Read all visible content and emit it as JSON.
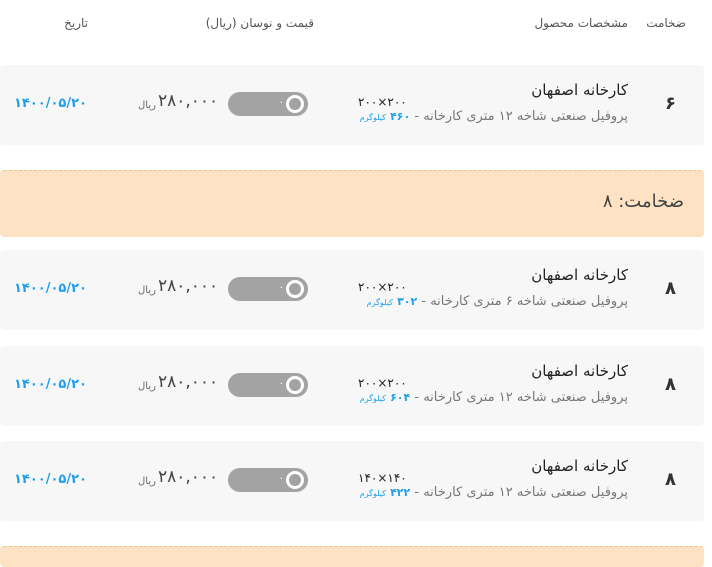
{
  "header": {
    "thickness": "ضخامت",
    "specs": "مشخصات محصول",
    "price": "قیمت و نوسان (ریال)",
    "date": "تاریخ"
  },
  "groups": [
    {
      "label": "ضخامت: ۸"
    }
  ],
  "rows": [
    {
      "thickness": "۶",
      "factory": "کارخانه اصفهان",
      "desc": "پروفیل صنعتی شاخه ۱۲ متری کارخانه - ",
      "weight": "۴۶۰",
      "weight_unit": "کیلوگرم",
      "size": "۲۰۰×۲۰۰",
      "change": "۰",
      "price": "۲۸۰,۰۰۰",
      "currency": "ریال",
      "date": "۱۴۰۰/۰۵/۲۰"
    },
    {
      "thickness": "۸",
      "factory": "کارخانه اصفهان",
      "desc": "پروفیل صنعتی شاخه ۶ متری کارخانه - ",
      "weight": "۳۰۲",
      "weight_unit": "کیلوگرم",
      "size": "۲۰۰×۲۰۰",
      "change": "۰",
      "price": "۲۸۰,۰۰۰",
      "currency": "ریال",
      "date": "۱۴۰۰/۰۵/۲۰"
    },
    {
      "thickness": "۸",
      "factory": "کارخانه اصفهان",
      "desc": "پروفیل صنعتی شاخه ۱۲ متری کارخانه - ",
      "weight": "۶۰۴",
      "weight_unit": "کیلوگرم",
      "size": "۲۰۰×۲۰۰",
      "change": "۰",
      "price": "۲۸۰,۰۰۰",
      "currency": "ریال",
      "date": "۱۴۰۰/۰۵/۲۰"
    },
    {
      "thickness": "۸",
      "factory": "کارخانه اصفهان",
      "desc": "پروفیل صنعتی شاخه ۱۲ متری کارخانه - ",
      "weight": "۴۲۲",
      "weight_unit": "کیلوگرم",
      "size": "۱۴۰×۱۴۰",
      "change": "۰",
      "price": "۲۸۰,۰۰۰",
      "currency": "ریال",
      "date": "۱۴۰۰/۰۵/۲۰"
    }
  ],
  "colors": {
    "accent": "#1fa0e8",
    "group_bg": "#fde3c4",
    "toggle": "#a3a3a3"
  }
}
